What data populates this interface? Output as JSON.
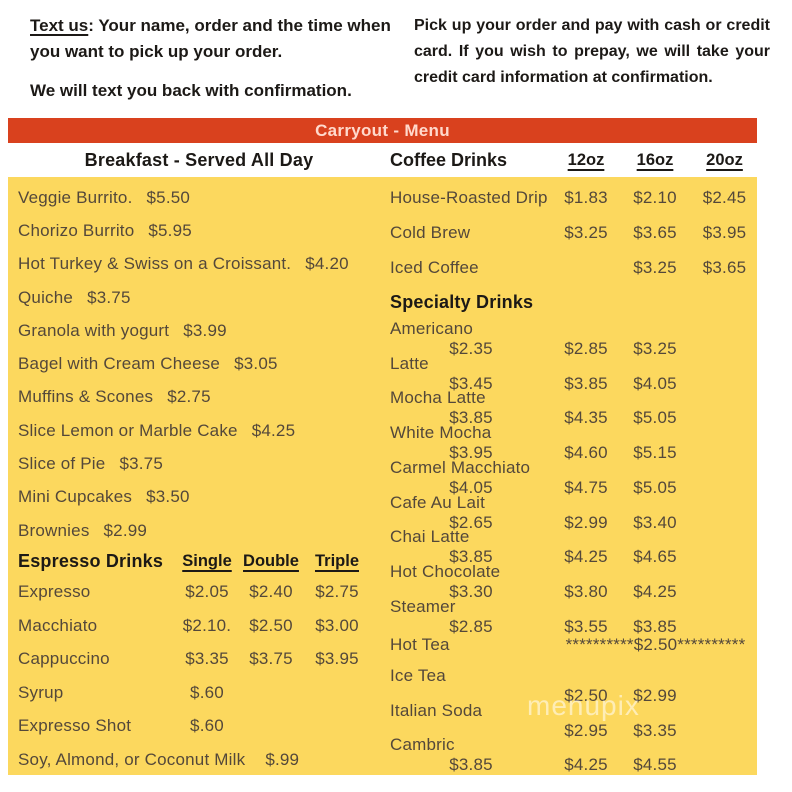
{
  "notes": {
    "left_title": "Text us",
    "left_body": ": Your name, order and the time when you want to pick up your order.",
    "left_confirm": "We will text you back with confirmation.",
    "right": "Pick up your order and pay with cash or credit card.  If you wish to prepay, we will take your credit card information at confirmation."
  },
  "banner": {
    "title": "Carryout - Menu"
  },
  "colors": {
    "banner_bg": "#d9411e",
    "banner_text": "#ffd9cc",
    "panel_bg": "#fcd85e",
    "item_text": "#54483a",
    "heading_text": "#1c1916"
  },
  "breakfast": {
    "header": "Breakfast - Served All Day",
    "items": [
      {
        "name": "Veggie Burrito.",
        "price": "$5.50"
      },
      {
        "name": "Chorizo Burrito",
        "price": "$5.95"
      },
      {
        "name": "Hot Turkey & Swiss on a Croissant.",
        "price": "$4.20"
      },
      {
        "name": "Quiche",
        "price": "$3.75"
      },
      {
        "name": "Granola with yogurt",
        "price": "$3.99"
      },
      {
        "name": "Bagel with Cream Cheese",
        "price": "$3.05"
      },
      {
        "name": "Muffins & Scones",
        "price": "$2.75"
      },
      {
        "name": "Slice Lemon or Marble Cake",
        "price": "$4.25"
      },
      {
        "name": "Slice of Pie",
        "price": "$3.75"
      },
      {
        "name": "Mini Cupcakes",
        "price": "$3.50"
      },
      {
        "name": "Brownies",
        "price": "$2.99"
      }
    ]
  },
  "espresso": {
    "header": "Espresso Drinks",
    "columns": [
      "Single",
      "Double",
      "Triple"
    ],
    "items": [
      {
        "name": "Expresso",
        "prices": [
          "$2.05",
          "$2.40",
          "$2.75"
        ]
      },
      {
        "name": "Macchiato",
        "prices": [
          "$2.10.",
          "$2.50",
          "$3.00"
        ]
      },
      {
        "name": "Cappuccino",
        "prices": [
          "$3.35",
          "$3.75",
          "$3.95"
        ]
      },
      {
        "name": "Syrup",
        "prices": [
          "$.60",
          "",
          ""
        ]
      },
      {
        "name": "Expresso Shot",
        "prices": [
          "$.60",
          "",
          ""
        ]
      }
    ],
    "footer": {
      "name": "Soy, Almond, or Coconut Milk",
      "price": "$.99"
    }
  },
  "coffee": {
    "header": "Coffee Drinks",
    "sizes": [
      "12oz",
      "16oz",
      "20oz"
    ],
    "items": [
      {
        "name": "House-Roasted Drip",
        "prices": [
          "$1.83",
          "$2.10",
          "$2.45"
        ]
      },
      {
        "name": "Cold Brew",
        "prices": [
          "$3.25",
          "$3.65",
          "$3.95"
        ]
      },
      {
        "name": "Iced Coffee",
        "prices": [
          "",
          "$3.25",
          "$3.65"
        ]
      }
    ]
  },
  "specialty": {
    "header": "Specialty Drinks",
    "items": [
      {
        "name": "Americano",
        "prices": [
          "$2.35",
          "$2.85",
          "$3.25"
        ]
      },
      {
        "name": "Latte",
        "prices": [
          "$3.45",
          "$3.85",
          "$4.05"
        ]
      },
      {
        "name": "Mocha Latte",
        "prices": [
          "$3.85",
          "$4.35",
          "$5.05"
        ]
      },
      {
        "name": "White Mocha",
        "prices": [
          "$3.95",
          "$4.60",
          "$5.15"
        ]
      },
      {
        "name": "Carmel Macchiato",
        "prices": [
          "$4.05",
          "$4.75",
          "$5.05"
        ]
      },
      {
        "name": "Cafe Au Lait",
        "prices": [
          "$2.65",
          "$2.99",
          "$3.40"
        ]
      },
      {
        "name": "Chai Latte",
        "prices": [
          "$3.85",
          "$4.25",
          "$4.65"
        ]
      },
      {
        "name": "Hot Chocolate",
        "prices": [
          "$3.30",
          "$3.80",
          "$4.25"
        ]
      },
      {
        "name": "Steamer",
        "prices": [
          "$2.85",
          "$3.55",
          "$3.85"
        ]
      },
      {
        "name": "Hot Tea",
        "prices": [
          "",
          "",
          ""
        ],
        "span": "**********$2.50**********"
      },
      {
        "name": "Ice Tea",
        "prices": [
          "",
          "$2.50",
          "$2.99"
        ]
      },
      {
        "name": "Italian Soda",
        "prices": [
          "",
          "$2.95",
          "$3.35"
        ]
      },
      {
        "name": "Cambric",
        "prices": [
          "$3.85",
          "$4.25",
          "$4.55"
        ]
      }
    ]
  },
  "watermark": "menupix"
}
